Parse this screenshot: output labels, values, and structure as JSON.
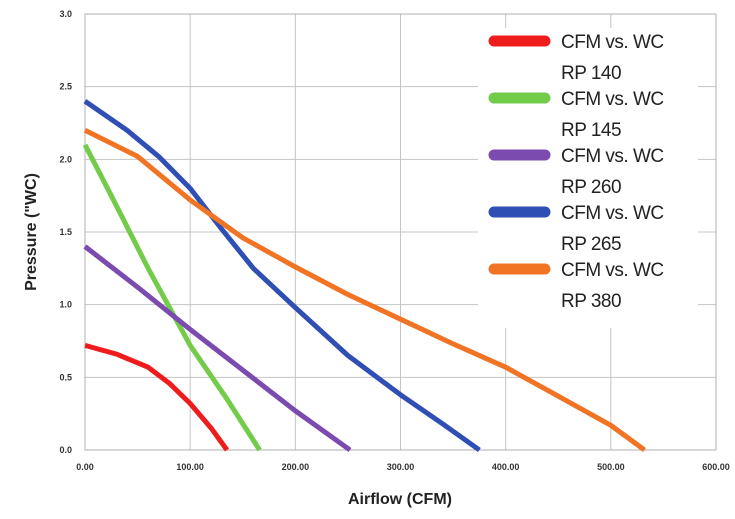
{
  "chart_data": {
    "type": "line",
    "xlabel": "Airflow (CFM)",
    "ylabel": "Pressure (\"WC)",
    "xlim": [
      0,
      600
    ],
    "ylim": [
      0,
      3.0
    ],
    "x_ticks": [
      "0.00",
      "100.00",
      "200.00",
      "300.00",
      "400.00",
      "500.00",
      "600.00"
    ],
    "y_ticks": [
      "0.0",
      "0.5",
      "1.0",
      "1.5",
      "2.0",
      "2.5",
      "3.0"
    ],
    "grid": true,
    "legend_position": "top-right",
    "series": [
      {
        "name": "CFM vs. WC RP 140",
        "legend_line1": "CFM vs. WC",
        "legend_line2": "RP 140",
        "color": "#ee1c1c",
        "points": [
          [
            0,
            0.72
          ],
          [
            30,
            0.66
          ],
          [
            60,
            0.57
          ],
          [
            80,
            0.46
          ],
          [
            100,
            0.32
          ],
          [
            120,
            0.15
          ],
          [
            135,
            0.0
          ]
        ]
      },
      {
        "name": "CFM vs. WC RP 145",
        "legend_line1": "CFM vs. WC",
        "legend_line2": "RP 145",
        "color": "#72cc4a",
        "points": [
          [
            0,
            2.1
          ],
          [
            25,
            1.75
          ],
          [
            60,
            1.25
          ],
          [
            100,
            0.72
          ],
          [
            135,
            0.35
          ],
          [
            166,
            0.0
          ]
        ]
      },
      {
        "name": "CFM vs. WC RP 260",
        "legend_line1": "CFM vs. WC",
        "legend_line2": "RP 260",
        "color": "#7b4bb0",
        "points": [
          [
            0,
            1.4
          ],
          [
            50,
            1.12
          ],
          [
            100,
            0.83
          ],
          [
            150,
            0.55
          ],
          [
            200,
            0.27
          ],
          [
            252,
            0.0
          ]
        ]
      },
      {
        "name": "CFM vs. WC RP 265",
        "legend_line1": "CFM vs. WC",
        "legend_line2": "RP 265",
        "color": "#2f4fb5",
        "points": [
          [
            0,
            2.4
          ],
          [
            40,
            2.2
          ],
          [
            70,
            2.02
          ],
          [
            100,
            1.8
          ],
          [
            130,
            1.52
          ],
          [
            160,
            1.25
          ],
          [
            200,
            0.98
          ],
          [
            250,
            0.65
          ],
          [
            300,
            0.38
          ],
          [
            340,
            0.18
          ],
          [
            375,
            0.0
          ]
        ]
      },
      {
        "name": "CFM vs. WC RP 380",
        "legend_line1": "CFM vs. WC",
        "legend_line2": "RP 380",
        "color": "#f07423",
        "points": [
          [
            0,
            2.2
          ],
          [
            50,
            2.02
          ],
          [
            100,
            1.72
          ],
          [
            150,
            1.46
          ],
          [
            200,
            1.26
          ],
          [
            250,
            1.07
          ],
          [
            300,
            0.9
          ],
          [
            350,
            0.73
          ],
          [
            400,
            0.57
          ],
          [
            450,
            0.37
          ],
          [
            500,
            0.17
          ],
          [
            532,
            0.0
          ]
        ]
      }
    ]
  }
}
